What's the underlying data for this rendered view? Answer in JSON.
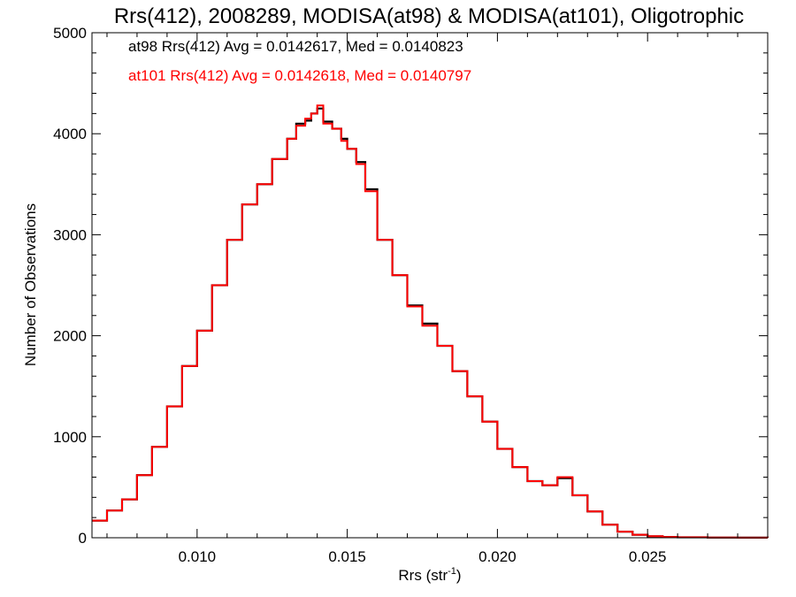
{
  "chart_data": {
    "type": "line",
    "title": "Rrs(412), 2008289, MODISA(at98) & MODISA(at101), Oligotrophic",
    "xlabel_main": "Rrs (str",
    "xlabel_sup": "-1",
    "xlabel_close": ")",
    "ylabel": "Number of Observations",
    "xlim": [
      0.0065,
      0.029
    ],
    "ylim": [
      0,
      5000
    ],
    "x_ticks": [
      0.01,
      0.015,
      0.02,
      0.025
    ],
    "x_tick_labels": [
      "0.010",
      "0.015",
      "0.020",
      "0.025"
    ],
    "y_ticks": [
      0,
      1000,
      2000,
      3000,
      4000,
      5000
    ],
    "y_tick_labels": [
      "0",
      "1000",
      "2000",
      "3000",
      "4000",
      "5000"
    ],
    "grid": false,
    "legend_placement": "top-left",
    "series": [
      {
        "name": "at98 Rrs(412) Avg = 0.0142617, Med = 0.0140823",
        "color": "#000000",
        "x": [
          0.0065,
          0.007,
          0.0075,
          0.008,
          0.0085,
          0.009,
          0.0095,
          0.01,
          0.0105,
          0.011,
          0.0115,
          0.012,
          0.0125,
          0.013,
          0.0133,
          0.0136,
          0.0138,
          0.014,
          0.0142,
          0.0145,
          0.0148,
          0.015,
          0.0153,
          0.0156,
          0.016,
          0.0165,
          0.017,
          0.0175,
          0.018,
          0.0185,
          0.019,
          0.0195,
          0.02,
          0.0205,
          0.021,
          0.0215,
          0.022,
          0.0225,
          0.023,
          0.0235,
          0.024,
          0.0245,
          0.025,
          0.0255,
          0.026,
          0.027,
          0.028,
          0.029
        ],
        "y": [
          170,
          270,
          380,
          620,
          900,
          1300,
          1700,
          2050,
          2500,
          2950,
          3300,
          3500,
          3750,
          3950,
          4100,
          4130,
          4200,
          4250,
          4120,
          4050,
          3950,
          3850,
          3720,
          3450,
          2950,
          2600,
          2300,
          2120,
          1900,
          1650,
          1400,
          1150,
          880,
          700,
          560,
          520,
          590,
          420,
          260,
          130,
          60,
          30,
          15,
          8,
          4,
          2,
          1,
          0
        ]
      },
      {
        "name": "at101 Rrs(412) Avg = 0.0142618, Med = 0.0140797",
        "color": "#ff0000",
        "x": [
          0.0065,
          0.007,
          0.0075,
          0.008,
          0.0085,
          0.009,
          0.0095,
          0.01,
          0.0105,
          0.011,
          0.0115,
          0.012,
          0.0125,
          0.013,
          0.0133,
          0.0136,
          0.0138,
          0.014,
          0.0142,
          0.0145,
          0.0148,
          0.015,
          0.0153,
          0.0156,
          0.016,
          0.0165,
          0.017,
          0.0175,
          0.018,
          0.0185,
          0.019,
          0.0195,
          0.02,
          0.0205,
          0.021,
          0.0215,
          0.022,
          0.0225,
          0.023,
          0.0235,
          0.024,
          0.0245,
          0.025,
          0.0255,
          0.026,
          0.027,
          0.028,
          0.029
        ],
        "y": [
          170,
          270,
          380,
          620,
          900,
          1300,
          1700,
          2050,
          2500,
          2950,
          3300,
          3500,
          3750,
          3950,
          4080,
          4150,
          4200,
          4280,
          4100,
          4050,
          3930,
          3850,
          3700,
          3430,
          2950,
          2600,
          2290,
          2100,
          1900,
          1650,
          1400,
          1150,
          880,
          700,
          560,
          520,
          600,
          420,
          260,
          130,
          60,
          30,
          15,
          8,
          4,
          2,
          1,
          0
        ]
      }
    ]
  }
}
